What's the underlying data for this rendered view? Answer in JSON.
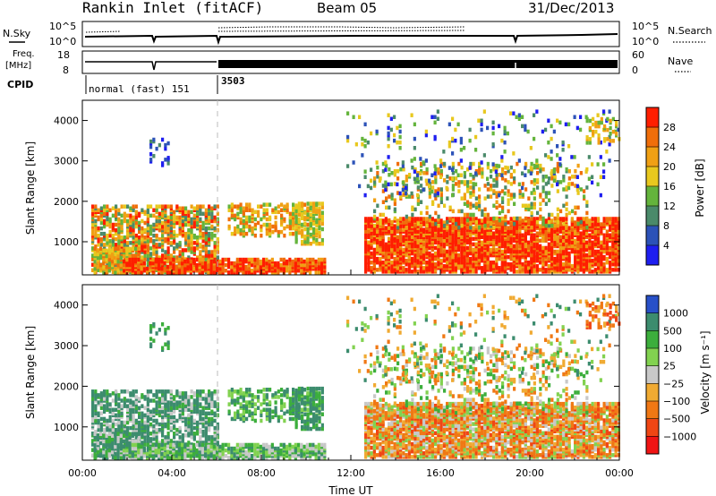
{
  "header": {
    "station": "Rankin Inlet (fitACF)",
    "beam": "Beam 05",
    "date": "31/Dec/2013"
  },
  "top_panels": {
    "nsky_label": "N.Sky",
    "nsky_ticks": [
      "10^5",
      "10^0"
    ],
    "nsearch_label": "N.Search",
    "nsearch_ticks": [
      "10^5",
      "10^0"
    ],
    "freq_label_1": "Freq.",
    "freq_label_2": "[MHz]",
    "freq_ticks": [
      "18",
      "8"
    ],
    "nave_label": "Nave",
    "nave_ticks": [
      "60",
      "0"
    ],
    "cpid_label": "CPID",
    "cpid_segments": [
      {
        "label": "normal (fast) 151",
        "start_hour": 0.0,
        "end_hour": 6.0
      },
      {
        "label": "3503",
        "start_hour": 6.0,
        "end_hour": 24.0
      }
    ]
  },
  "chart_data": [
    {
      "type": "heatmap",
      "title": "",
      "xlabel": "",
      "ylabel": "Slant Range [km]",
      "x_range_hours": [
        0,
        24
      ],
      "ylim": [
        180,
        4500
      ],
      "y_ticks": [
        "1000",
        "2000",
        "3000",
        "4000"
      ],
      "quantity": "Power",
      "colorbar_label": "Power [dB]",
      "colorbar_ticks": [
        "4",
        "8",
        "12",
        "16",
        "20",
        "24",
        "28"
      ],
      "colorbar_colors": [
        "#1e1ef0",
        "#2c52b8",
        "#4a8a6a",
        "#64b43c",
        "#e8c81e",
        "#f0a014",
        "#f06e0a",
        "#ff1e00"
      ],
      "description_regions": [
        {
          "start_hour": 0.4,
          "end_hour": 6.0,
          "range_km": [
            250,
            2000
          ],
          "dominant": "green-orange"
        },
        {
          "start_hour": 4.5,
          "end_hour": 10.5,
          "range_km": [
            250,
            700
          ],
          "dominant": "red"
        },
        {
          "start_hour": 12.5,
          "end_hour": 24.0,
          "range_km": [
            250,
            1600
          ],
          "dominant": "red"
        },
        {
          "start_hour": 13.0,
          "end_hour": 22.0,
          "range_km": [
            1500,
            3000
          ],
          "dominant": "green"
        }
      ]
    },
    {
      "type": "heatmap",
      "title": "",
      "xlabel": "Time UT",
      "ylabel": "Slant Range [km]",
      "x_range_hours": [
        0,
        24
      ],
      "ylim": [
        180,
        4500
      ],
      "y_ticks": [
        "1000",
        "2000",
        "3000",
        "4000"
      ],
      "x_ticks": [
        "00:00",
        "04:00",
        "08:00",
        "12:00",
        "16:00",
        "20:00",
        "00:00"
      ],
      "quantity": "Velocity",
      "colorbar_label": "Velocity [m s⁻¹]",
      "colorbar_ticks": [
        "1000",
        "500",
        "100",
        "25",
        "−25",
        "−100",
        "−500",
        "−1000"
      ],
      "colorbar_colors": [
        "#2850c8",
        "#3c8c6e",
        "#3cae3c",
        "#82d250",
        "#c8c8c8",
        "#f0aa32",
        "#f07814",
        "#f04614",
        "#f01414"
      ]
    }
  ]
}
